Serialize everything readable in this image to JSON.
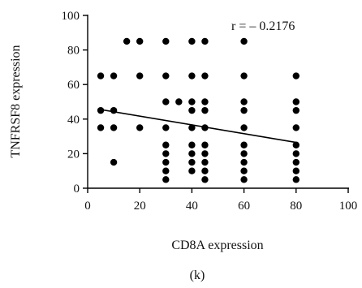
{
  "chart_data": {
    "type": "scatter",
    "xlabel": "CD8A expression",
    "ylabel": "TNFRSF8 expression",
    "panel_label": "(k)",
    "annotation": "r = – 0.2176",
    "xlim": [
      0,
      100
    ],
    "ylim": [
      0,
      100
    ],
    "x_ticks": [
      0,
      20,
      40,
      60,
      80,
      100
    ],
    "y_ticks": [
      0,
      20,
      40,
      60,
      80,
      100
    ],
    "grid": false,
    "legend": "none",
    "points": [
      {
        "x": 5,
        "y": 65
      },
      {
        "x": 5,
        "y": 45
      },
      {
        "x": 5,
        "y": 35
      },
      {
        "x": 10,
        "y": 65
      },
      {
        "x": 10,
        "y": 45
      },
      {
        "x": 10,
        "y": 35
      },
      {
        "x": 10,
        "y": 15
      },
      {
        "x": 15,
        "y": 85
      },
      {
        "x": 20,
        "y": 85
      },
      {
        "x": 20,
        "y": 65
      },
      {
        "x": 20,
        "y": 35
      },
      {
        "x": 30,
        "y": 85
      },
      {
        "x": 30,
        "y": 65
      },
      {
        "x": 30,
        "y": 50
      },
      {
        "x": 30,
        "y": 35
      },
      {
        "x": 30,
        "y": 25
      },
      {
        "x": 30,
        "y": 20
      },
      {
        "x": 30,
        "y": 15
      },
      {
        "x": 30,
        "y": 10
      },
      {
        "x": 30,
        "y": 5
      },
      {
        "x": 35,
        "y": 50
      },
      {
        "x": 40,
        "y": 85
      },
      {
        "x": 40,
        "y": 65
      },
      {
        "x": 40,
        "y": 50
      },
      {
        "x": 40,
        "y": 45
      },
      {
        "x": 40,
        "y": 35
      },
      {
        "x": 40,
        "y": 25
      },
      {
        "x": 40,
        "y": 20
      },
      {
        "x": 40,
        "y": 15
      },
      {
        "x": 40,
        "y": 10
      },
      {
        "x": 45,
        "y": 85
      },
      {
        "x": 45,
        "y": 65
      },
      {
        "x": 45,
        "y": 50
      },
      {
        "x": 45,
        "y": 45
      },
      {
        "x": 45,
        "y": 35
      },
      {
        "x": 45,
        "y": 25
      },
      {
        "x": 45,
        "y": 20
      },
      {
        "x": 45,
        "y": 15
      },
      {
        "x": 45,
        "y": 10
      },
      {
        "x": 45,
        "y": 5
      },
      {
        "x": 60,
        "y": 85
      },
      {
        "x": 60,
        "y": 65
      },
      {
        "x": 60,
        "y": 50
      },
      {
        "x": 60,
        "y": 45
      },
      {
        "x": 60,
        "y": 35
      },
      {
        "x": 60,
        "y": 25
      },
      {
        "x": 60,
        "y": 20
      },
      {
        "x": 60,
        "y": 15
      },
      {
        "x": 60,
        "y": 10
      },
      {
        "x": 60,
        "y": 5
      },
      {
        "x": 80,
        "y": 65
      },
      {
        "x": 80,
        "y": 50
      },
      {
        "x": 80,
        "y": 45
      },
      {
        "x": 80,
        "y": 35
      },
      {
        "x": 80,
        "y": 25
      },
      {
        "x": 80,
        "y": 20
      },
      {
        "x": 80,
        "y": 15
      },
      {
        "x": 80,
        "y": 10
      },
      {
        "x": 80,
        "y": 5
      }
    ],
    "trendline": {
      "x": [
        5,
        80
      ],
      "y": [
        45.5,
        26.5
      ]
    },
    "colors": {
      "points": "#000000",
      "line": "#000000",
      "axis": "#000000"
    }
  }
}
